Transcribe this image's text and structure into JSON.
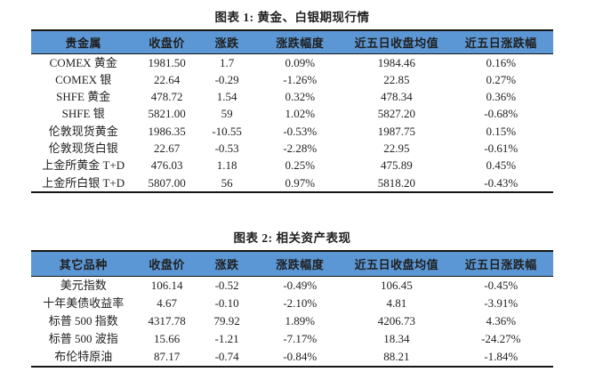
{
  "colors": {
    "header_bg": "#5b97d5",
    "border": "#151515",
    "text": "#1f1f1f"
  },
  "tables": [
    {
      "title": "图表 1: 黄金、白银期现行情",
      "columns": [
        "贵金属",
        "收盘价",
        "涨跌",
        "涨跌幅度",
        "近五日收盘均值",
        "近五日涨跌幅"
      ],
      "rows": [
        [
          "COMEX 黄金",
          "1981.50",
          "1.7",
          "0.09%",
          "1984.46",
          "0.16%"
        ],
        [
          "COMEX 银",
          "22.64",
          "-0.29",
          "-1.26%",
          "22.85",
          "0.27%"
        ],
        [
          "SHFE 黄金",
          "478.72",
          "1.54",
          "0.32%",
          "478.34",
          "0.36%"
        ],
        [
          "SHFE 银",
          "5821.00",
          "59",
          "1.02%",
          "5827.20",
          "-0.68%"
        ],
        [
          "伦敦现货黄金",
          "1986.35",
          "-10.55",
          "-0.53%",
          "1987.75",
          "0.15%"
        ],
        [
          "伦敦现货白银",
          "22.67",
          "-0.53",
          "-2.28%",
          "22.95",
          "-0.61%"
        ],
        [
          "上金所黄金 T+D",
          "476.03",
          "1.18",
          "0.25%",
          "475.89",
          "0.45%"
        ],
        [
          "上金所白银 T+D",
          "5807.00",
          "56",
          "0.97%",
          "5818.20",
          "-0.43%"
        ]
      ]
    },
    {
      "title": "图表 2: 相关资产表现",
      "columns": [
        "其它品种",
        "收盘价",
        "涨跌",
        "涨跌幅度",
        "近五日收盘均值",
        "近五日涨跌幅"
      ],
      "rows": [
        [
          "美元指数",
          "106.14",
          "-0.52",
          "-0.49%",
          "106.45",
          "-0.45%"
        ],
        [
          "十年美债收益率",
          "4.67",
          "-0.10",
          "-2.10%",
          "4.81",
          "-3.91%"
        ],
        [
          "标普 500 指数",
          "4317.78",
          "79.92",
          "1.89%",
          "4206.73",
          "4.36%"
        ],
        [
          "标普 500 波指",
          "15.66",
          "-1.21",
          "-7.17%",
          "18.34",
          "-24.27%"
        ],
        [
          "布伦特原油",
          "87.17",
          "-0.74",
          "-0.84%",
          "88.21",
          "-1.84%"
        ]
      ]
    }
  ]
}
